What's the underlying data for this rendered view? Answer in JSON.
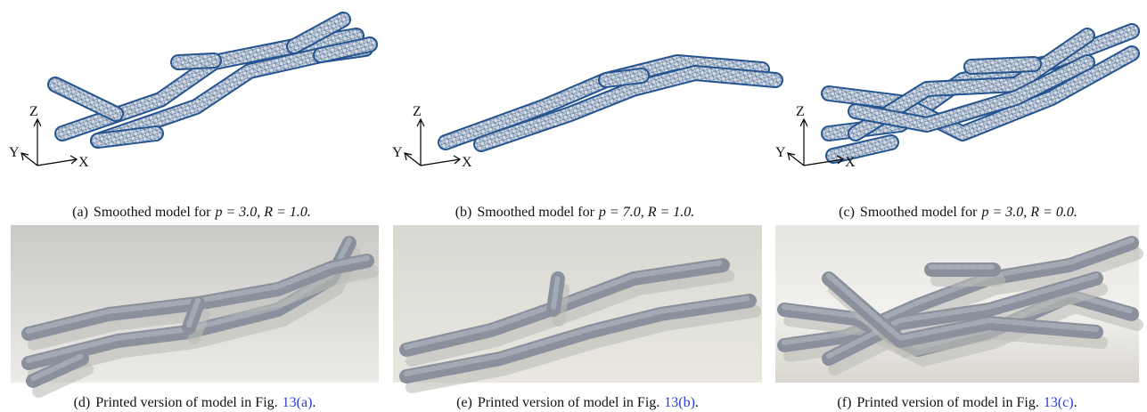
{
  "figure": {
    "mesh_panels": [
      {
        "label": "(a)",
        "text": "Smoothed model for",
        "math": "p = 3.0, R = 1.0.",
        "axis_labels": {
          "z": "Z",
          "y": "Y",
          "x": "X"
        }
      },
      {
        "label": "(b)",
        "text": "Smoothed model for",
        "math": "p = 7.0, R = 1.0.",
        "axis_labels": {
          "z": "Z",
          "y": "Y",
          "x": "X"
        }
      },
      {
        "label": "(c)",
        "text": "Smoothed model for",
        "math": "p = 3.0, R = 0.0.",
        "axis_labels": {
          "z": "Z",
          "y": "Y",
          "x": "X"
        }
      }
    ],
    "photo_panels": [
      {
        "label": "(d)",
        "text": "Printed version of model in Fig.",
        "link": "13(a)",
        "end": "."
      },
      {
        "label": "(e)",
        "text": "Printed version of model in Fig.",
        "link": "13(b)",
        "end": "."
      },
      {
        "label": "(f)",
        "text": "Printed version of model in Fig.",
        "link": "13(c)",
        "end": "."
      }
    ]
  }
}
